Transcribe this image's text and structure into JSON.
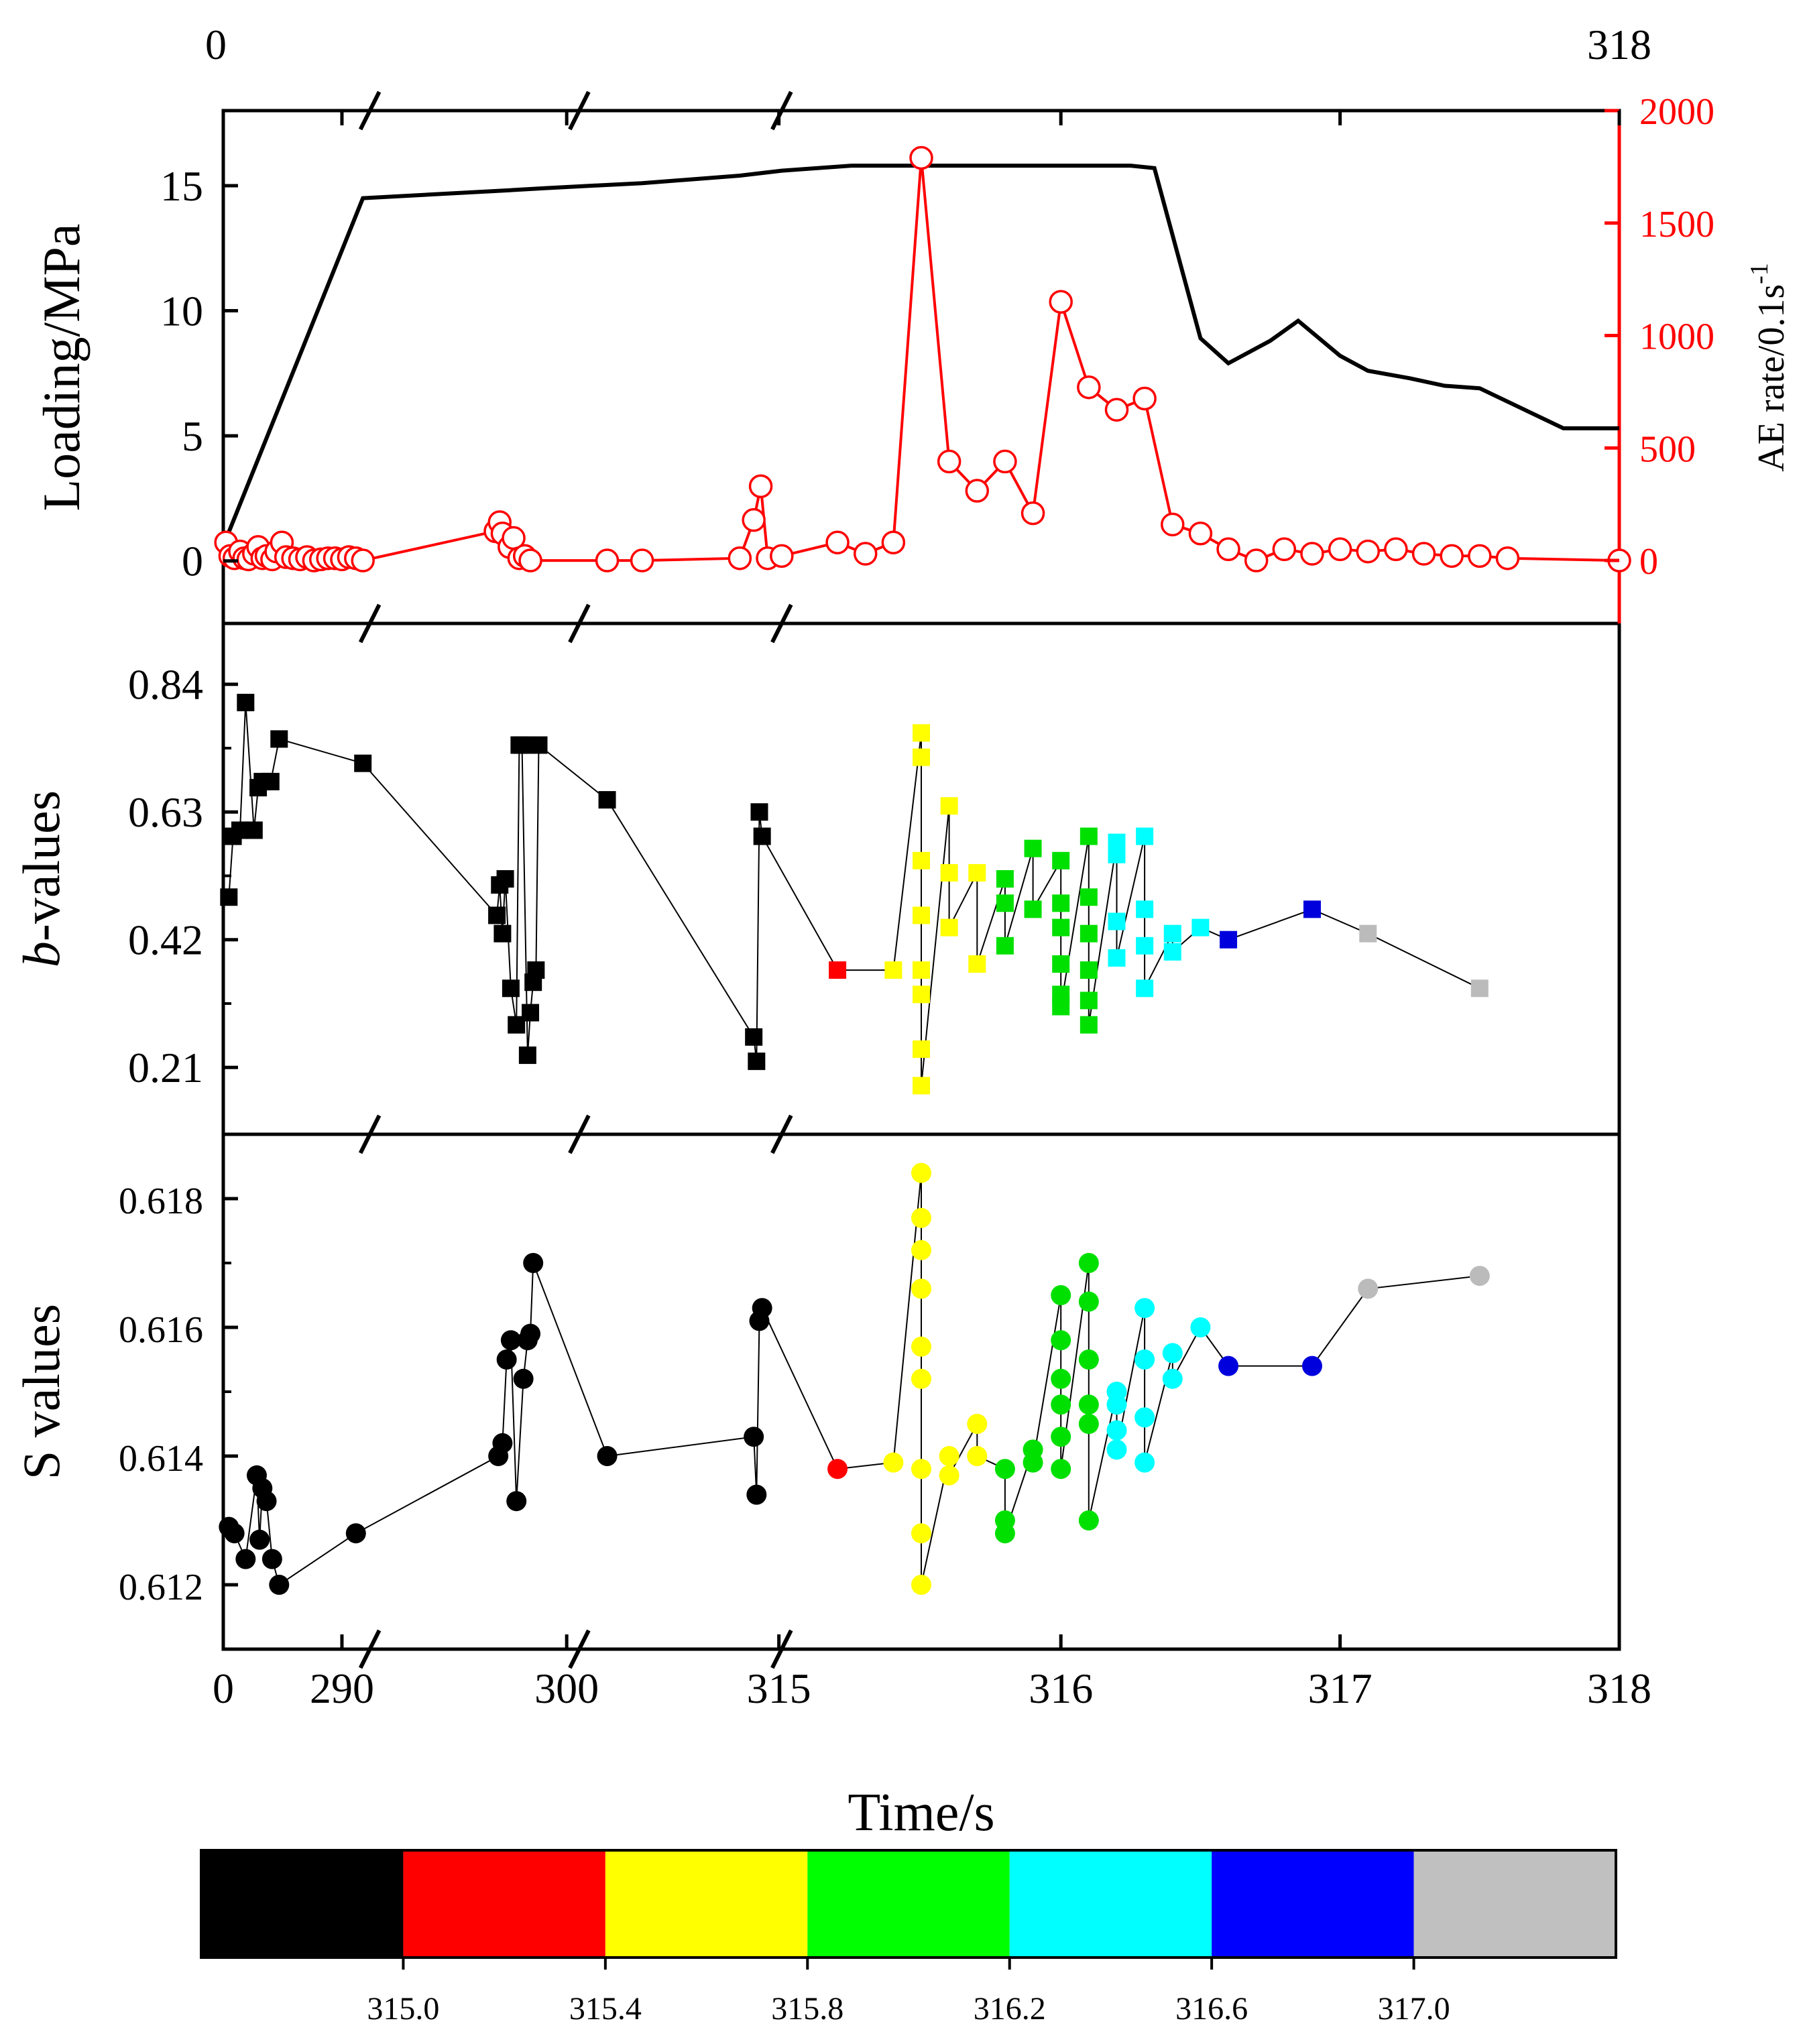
{
  "chart_data": [
    {
      "type": "line",
      "panel": "top",
      "title": "",
      "top_axis": {
        "start_label": "0",
        "end_label": "318"
      },
      "ylabel": "Loading/MPa",
      "ylabel_right": "AE rate/0.1s",
      "ylabel_right_superscript": "-1",
      "ylim": [
        -2.5,
        18
      ],
      "ylim_right": [
        -280,
        2000
      ],
      "yticks": [
        "0",
        "5",
        "10",
        "15"
      ],
      "yticks_right": [
        "0",
        "500",
        "1000",
        "1500",
        "2000"
      ],
      "colors": {
        "loading": "#000000",
        "ae_rate": "#ff0000"
      },
      "series": [
        {
          "name": "Loading",
          "axis": "left",
          "color": "#000000",
          "x": [
            0,
            0.1,
            0.2,
            0.23,
            0.3,
            0.37,
            0.4,
            0.45,
            0.5,
            0.55,
            0.6,
            0.62,
            0.65,
            0.667,
            0.7,
            0.72,
            0.75,
            0.77,
            0.8,
            0.82,
            0.85,
            0.875,
            0.9,
            0.93,
            0.96,
            1.0
          ],
          "y": [
            0.6,
            14.5,
            14.8,
            14.9,
            15.1,
            15.4,
            15.6,
            15.8,
            15.8,
            15.8,
            15.8,
            15.8,
            15.8,
            15.7,
            8.9,
            7.9,
            8.8,
            9.6,
            8.2,
            7.6,
            7.3,
            7.0,
            6.9,
            6.1,
            5.3,
            5.3
          ]
        },
        {
          "name": "AE rate",
          "axis": "right",
          "color": "#ff0000",
          "marker": "open-circle",
          "x": [
            0.002,
            0.005,
            0.008,
            0.012,
            0.015,
            0.018,
            0.022,
            0.025,
            0.028,
            0.031,
            0.035,
            0.038,
            0.042,
            0.045,
            0.05,
            0.055,
            0.06,
            0.065,
            0.07,
            0.075,
            0.08,
            0.085,
            0.09,
            0.095,
            0.1,
            0.195,
            0.198,
            0.2,
            0.205,
            0.208,
            0.212,
            0.216,
            0.22,
            0.275,
            0.3,
            0.37,
            0.38,
            0.385,
            0.39,
            0.4,
            0.44,
            0.46,
            0.48,
            0.5,
            0.52,
            0.54,
            0.56,
            0.58,
            0.6,
            0.62,
            0.64,
            0.66,
            0.68,
            0.7,
            0.72,
            0.74,
            0.76,
            0.78,
            0.8,
            0.82,
            0.84,
            0.86,
            0.88,
            0.9,
            0.92,
            1.0
          ],
          "y": [
            80,
            20,
            10,
            40,
            10,
            5,
            30,
            60,
            10,
            20,
            5,
            40,
            80,
            15,
            10,
            5,
            15,
            0,
            5,
            10,
            10,
            5,
            15,
            10,
            0,
            130,
            170,
            120,
            60,
            100,
            10,
            20,
            0,
            0,
            0,
            10,
            180,
            330,
            10,
            20,
            80,
            30,
            80,
            1790,
            440,
            310,
            440,
            210,
            1150,
            770,
            670,
            720,
            160,
            120,
            50,
            0,
            50,
            30,
            50,
            40,
            50,
            30,
            20,
            20,
            10,
            0
          ]
        }
      ]
    },
    {
      "type": "scatter",
      "panel": "middle",
      "ylabel_italic": "b",
      "ylabel": "-values",
      "ylim": [
        0.1,
        0.94
      ],
      "yticks": [
        "0.21",
        "0.42",
        "0.63",
        "0.84"
      ],
      "marker": "filled-square",
      "connected": true,
      "series": [
        {
          "name": "≤315.0",
          "color": "#000000",
          "x": [
            0.004,
            0.007,
            0.012,
            0.016,
            0.022,
            0.025,
            0.028,
            0.034,
            0.04,
            0.1,
            0.196,
            0.198,
            0.2,
            0.202,
            0.206,
            0.21,
            0.212,
            0.214,
            0.218,
            0.22,
            0.222,
            0.224,
            0.226,
            0.275,
            0.38,
            0.382,
            0.384,
            0.386
          ],
          "y": [
            0.49,
            0.59,
            0.6,
            0.81,
            0.6,
            0.67,
            0.68,
            0.68,
            0.75,
            0.71,
            0.46,
            0.51,
            0.43,
            0.52,
            0.34,
            0.28,
            0.74,
            0.74,
            0.23,
            0.3,
            0.35,
            0.37,
            0.74,
            0.65,
            0.26,
            0.22,
            0.63,
            0.59
          ]
        },
        {
          "name": "315.0–315.4",
          "color": "#ff0000",
          "x": [
            0.44
          ],
          "y": [
            0.37
          ]
        },
        {
          "name": "315.4–315.8",
          "color": "#ffff00",
          "x": [
            0.48,
            0.5,
            0.5,
            0.5,
            0.5,
            0.5,
            0.5,
            0.5,
            0.5,
            0.52,
            0.52,
            0.52,
            0.54,
            0.54
          ],
          "y": [
            0.37,
            0.76,
            0.72,
            0.55,
            0.46,
            0.37,
            0.33,
            0.24,
            0.18,
            0.64,
            0.53,
            0.44,
            0.53,
            0.38
          ]
        },
        {
          "name": "315.8–316.2",
          "color": "#00e000",
          "x": [
            0.56,
            0.56,
            0.56,
            0.58,
            0.58,
            0.6,
            0.6,
            0.6,
            0.6,
            0.6,
            0.6,
            0.62,
            0.62,
            0.62,
            0.62,
            0.62,
            0.62
          ],
          "y": [
            0.52,
            0.48,
            0.41,
            0.57,
            0.47,
            0.55,
            0.48,
            0.44,
            0.38,
            0.33,
            0.31,
            0.59,
            0.49,
            0.43,
            0.37,
            0.32,
            0.28
          ]
        },
        {
          "name": "316.2–316.6",
          "color": "#00ffff",
          "x": [
            0.64,
            0.64,
            0.64,
            0.64,
            0.66,
            0.66,
            0.66,
            0.66,
            0.68,
            0.68,
            0.7
          ],
          "y": [
            0.58,
            0.56,
            0.45,
            0.39,
            0.59,
            0.47,
            0.41,
            0.34,
            0.43,
            0.4,
            0.44
          ]
        },
        {
          "name": "316.6–317.0",
          "color": "#0000dd",
          "x": [
            0.72,
            0.78
          ],
          "y": [
            0.42,
            0.47
          ]
        },
        {
          "name": "≥317.0",
          "color": "#bbbbbb",
          "x": [
            0.82,
            0.9
          ],
          "y": [
            0.43,
            0.34
          ]
        }
      ]
    },
    {
      "type": "scatter",
      "panel": "bottom",
      "ylabel": "S values",
      "ylim": [
        0.611,
        0.619
      ],
      "yticks": [
        "0.612",
        "0.614",
        "0.616",
        "0.618"
      ],
      "marker": "filled-circle",
      "connected": true,
      "series": [
        {
          "name": "≤315.0",
          "color": "#000000",
          "x": [
            0.004,
            0.008,
            0.016,
            0.024,
            0.026,
            0.028,
            0.031,
            0.035,
            0.04,
            0.095,
            0.197,
            0.2,
            0.203,
            0.206,
            0.21,
            0.215,
            0.218,
            0.22,
            0.222,
            0.275,
            0.38,
            0.382,
            0.384,
            0.386
          ],
          "y": [
            0.6129,
            0.6128,
            0.6124,
            0.6137,
            0.6127,
            0.6135,
            0.6133,
            0.6124,
            0.612,
            0.6128,
            0.614,
            0.6142,
            0.6155,
            0.6158,
            0.6133,
            0.6152,
            0.6158,
            0.6159,
            0.617,
            0.614,
            0.6143,
            0.6134,
            0.6161,
            0.6163
          ]
        },
        {
          "name": "315.0–315.4",
          "color": "#ff0000",
          "x": [
            0.44
          ],
          "y": [
            0.6138
          ]
        },
        {
          "name": "315.4–315.8",
          "color": "#ffff00",
          "x": [
            0.48,
            0.5,
            0.5,
            0.5,
            0.5,
            0.5,
            0.5,
            0.5,
            0.5,
            0.5,
            0.52,
            0.52,
            0.54,
            0.54
          ],
          "y": [
            0.6139,
            0.6184,
            0.6177,
            0.6172,
            0.6166,
            0.6157,
            0.6152,
            0.6138,
            0.6128,
            0.612,
            0.614,
            0.6137,
            0.6145,
            0.614
          ]
        },
        {
          "name": "315.8–316.2",
          "color": "#00e000",
          "x": [
            0.56,
            0.56,
            0.56,
            0.58,
            0.58,
            0.6,
            0.6,
            0.6,
            0.6,
            0.6,
            0.6,
            0.62,
            0.62,
            0.62,
            0.62,
            0.62,
            0.62
          ],
          "y": [
            0.6138,
            0.613,
            0.6128,
            0.6141,
            0.6139,
            0.6165,
            0.6158,
            0.6152,
            0.6148,
            0.6143,
            0.6138,
            0.617,
            0.6164,
            0.6155,
            0.6148,
            0.6145,
            0.613
          ]
        },
        {
          "name": "316.2–316.6",
          "color": "#00ffff",
          "x": [
            0.64,
            0.64,
            0.64,
            0.64,
            0.66,
            0.66,
            0.66,
            0.66,
            0.68,
            0.68,
            0.7
          ],
          "y": [
            0.615,
            0.6148,
            0.6144,
            0.6141,
            0.6163,
            0.6155,
            0.6146,
            0.6139,
            0.6156,
            0.6152,
            0.616
          ]
        },
        {
          "name": "316.6–317.0",
          "color": "#0000dd",
          "x": [
            0.72,
            0.78
          ],
          "y": [
            0.6154,
            0.6154
          ]
        },
        {
          "name": "≥317.0",
          "color": "#bbbbbb",
          "x": [
            0.82,
            0.9
          ],
          "y": [
            0.6166,
            0.6168
          ]
        }
      ]
    }
  ],
  "x_axis": {
    "xlabel": "Time/s",
    "ticks": [
      {
        "label": "0",
        "pos": 0.0
      },
      {
        "label": "290",
        "pos": 0.085
      },
      {
        "label": "300",
        "pos": 0.246
      },
      {
        "label": "315",
        "pos": 0.398
      },
      {
        "label": "316",
        "pos": 0.6
      },
      {
        "label": "317",
        "pos": 0.8
      },
      {
        "label": "318",
        "pos": 1.0
      }
    ],
    "breaks": [
      0.105,
      0.255,
      0.4
    ]
  },
  "colorbar": {
    "colors": [
      "#000000",
      "#ff0000",
      "#ffff00",
      "#00ff00",
      "#00ffff",
      "#0000ff",
      "#c0c0c0"
    ],
    "tick_labels": [
      "315.0",
      "315.4",
      "315.8",
      "316.2",
      "316.6",
      "317.0"
    ]
  }
}
